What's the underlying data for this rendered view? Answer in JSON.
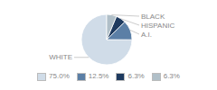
{
  "chart_data": {
    "type": "pie",
    "categories": [
      "WHITE",
      "A.I.",
      "HISPANIC",
      "BLACK"
    ],
    "values": [
      75.0,
      12.5,
      6.3,
      6.3
    ],
    "value_labels": [
      "75.0%",
      "12.5%",
      "6.3%",
      "6.3%"
    ],
    "colors": [
      "#d0dce8",
      "#5b7fa6",
      "#1e3a5f",
      "#b0bfc8"
    ],
    "legend": "bottom"
  }
}
